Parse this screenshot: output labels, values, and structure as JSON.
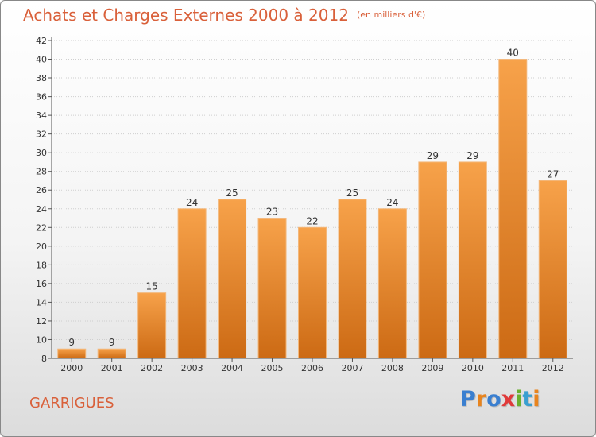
{
  "title": "Achats et Charges Externes 2000 à 2012",
  "subtitle": "(en milliers d'€)",
  "commune": "GARRIGUES",
  "logo": {
    "letters": [
      "P",
      "r",
      "o",
      "x",
      "i",
      "t",
      "i"
    ],
    "colors": [
      "#3a7fd0",
      "#e8841e",
      "#3a7fd0",
      "#e03a3a",
      "#6ab02e",
      "#3a9fd0",
      "#e8841e"
    ]
  },
  "colors": {
    "bar_top": "#f7a24a",
    "bar_bottom": "#cc6a14",
    "title": "#d9603a"
  },
  "chart_data": {
    "type": "bar",
    "title": "Achats et Charges Externes 2000 à 2012",
    "subtitle": "(en milliers d'€)",
    "categories": [
      "2000",
      "2001",
      "2002",
      "2003",
      "2004",
      "2005",
      "2006",
      "2007",
      "2008",
      "2009",
      "2010",
      "2011",
      "2012"
    ],
    "values": [
      9,
      9,
      15,
      24,
      25,
      23,
      22,
      25,
      24,
      29,
      29,
      40,
      27
    ],
    "ylim": [
      8,
      42
    ],
    "yticks": [
      8,
      10,
      12,
      14,
      16,
      18,
      20,
      22,
      24,
      26,
      28,
      30,
      32,
      34,
      36,
      38,
      40,
      42
    ],
    "grid": true,
    "legend": "none",
    "xlabel": "",
    "ylabel": ""
  }
}
